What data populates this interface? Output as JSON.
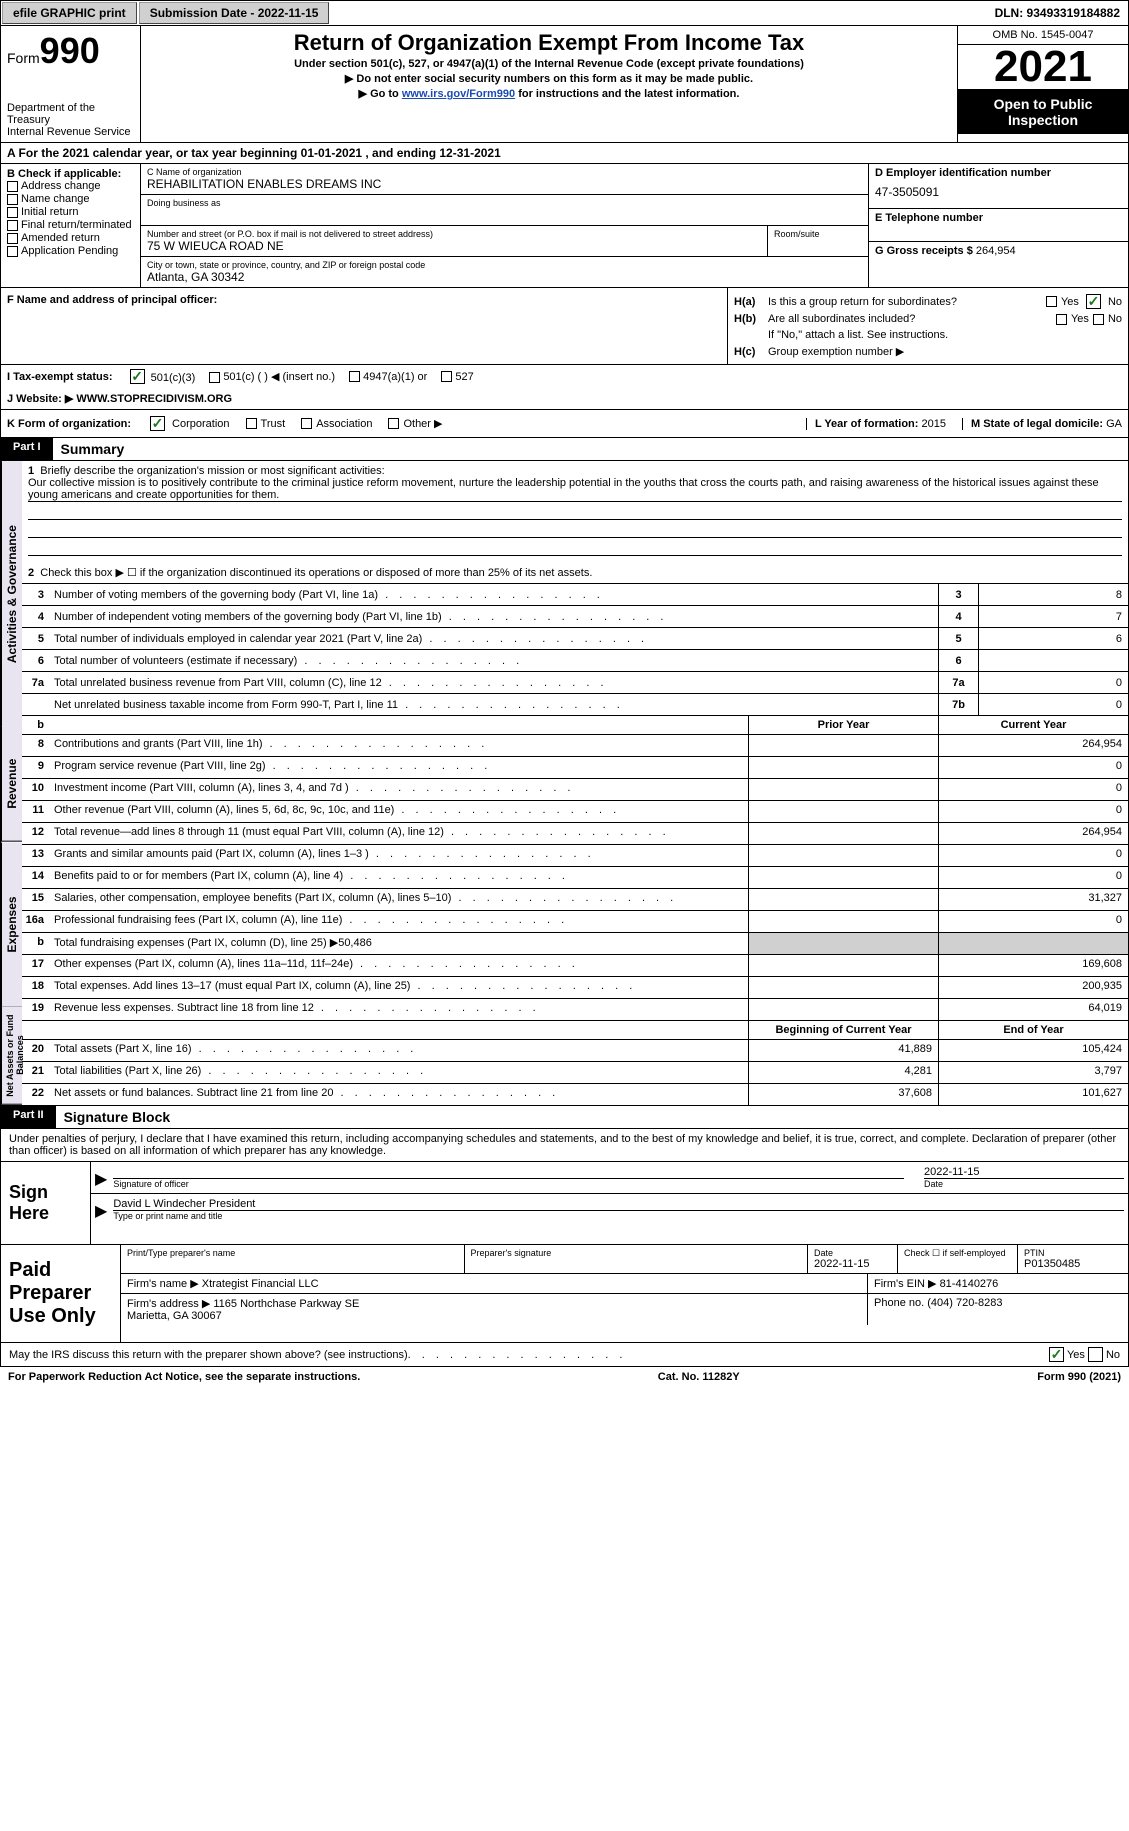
{
  "topbar": {
    "efile": "efile GRAPHIC print",
    "sub_label": "Submission Date - 2022-11-15",
    "dln": "DLN: 93493319184882"
  },
  "header": {
    "form_word": "Form",
    "form_num": "990",
    "title": "Return of Organization Exempt From Income Tax",
    "subtitle": "Under section 501(c), 527, or 4947(a)(1) of the Internal Revenue Code (except private foundations)",
    "note1": "▶ Do not enter social security numbers on this form as it may be made public.",
    "note2_prefix": "▶ Go to ",
    "note2_link": "www.irs.gov/Form990",
    "note2_suffix": " for instructions and the latest information.",
    "dept": "Department of the Treasury\nInternal Revenue Service",
    "omb": "OMB No. 1545-0047",
    "year": "2021",
    "inspection": "Open to Public Inspection"
  },
  "period": "A For the 2021 calendar year, or tax year beginning 01-01-2021    , and ending 12-31-2021",
  "sectionB": {
    "label": "B Check if applicable:",
    "opts": [
      "Address change",
      "Name change",
      "Initial return",
      "Final return/terminated",
      "Amended return",
      "Application Pending"
    ]
  },
  "sectionC": {
    "name_label": "C Name of organization",
    "name": "REHABILITATION ENABLES DREAMS INC",
    "dba_label": "Doing business as",
    "street_label": "Number and street (or P.O. box if mail is not delivered to street address)",
    "room_label": "Room/suite",
    "street": "75 W WIEUCA ROAD NE",
    "city_label": "City or town, state or province, country, and ZIP or foreign postal code",
    "city": "Atlanta, GA  30342"
  },
  "sectionD": {
    "ein_label": "D Employer identification number",
    "ein": "47-3505091",
    "phone_label": "E Telephone number",
    "gross_label": "G Gross receipts $",
    "gross": "264,954"
  },
  "sectionF": {
    "label": "F Name and address of principal officer:"
  },
  "sectionH": {
    "a": "Is this a group return for subordinates?",
    "b": "Are all subordinates included?",
    "b_note": "If \"No,\" attach a list. See instructions.",
    "c": "Group exemption number ▶",
    "yes": "Yes",
    "no": "No"
  },
  "sectionI": {
    "label": "I    Tax-exempt status:",
    "opts": [
      "501(c)(3)",
      "501(c) (   ) ◀ (insert no.)",
      "4947(a)(1) or",
      "527"
    ]
  },
  "sectionJ": {
    "label": "J   Website: ▶",
    "value": "WWW.STOPRECIDIVISM.ORG"
  },
  "sectionK": {
    "label": "K Form of organization:",
    "opts": [
      "Corporation",
      "Trust",
      "Association",
      "Other ▶"
    ],
    "year_label": "L Year of formation:",
    "year": "2015",
    "state_label": "M State of legal domicile:",
    "state": "GA"
  },
  "part1": {
    "header": "Part I",
    "title": "Summary",
    "vtab1": "Activities & Governance",
    "vtab2": "Revenue",
    "vtab3": "Expenses",
    "vtab4": "Net Assets or Fund Balances",
    "line1_label": "Briefly describe the organization's mission or most significant activities:",
    "mission": "Our collective mission is to positively contribute to the criminal justice reform movement, nurture the leadership potential in the youths that cross the courts path, and raising awareness of the historical issues against these young americans and create opportunities for them.",
    "line2": "Check this box ▶ ☐ if the organization discontinued its operations or disposed of more than 25% of its net assets.",
    "lines": [
      {
        "n": "3",
        "t": "Number of voting members of the governing body (Part VI, line 1a)",
        "box": "3",
        "v": "8"
      },
      {
        "n": "4",
        "t": "Number of independent voting members of the governing body (Part VI, line 1b)",
        "box": "4",
        "v": "7"
      },
      {
        "n": "5",
        "t": "Total number of individuals employed in calendar year 2021 (Part V, line 2a)",
        "box": "5",
        "v": "6"
      },
      {
        "n": "6",
        "t": "Total number of volunteers (estimate if necessary)",
        "box": "6",
        "v": ""
      },
      {
        "n": "7a",
        "t": "Total unrelated business revenue from Part VIII, column (C), line 12",
        "box": "7a",
        "v": "0"
      },
      {
        "n": "",
        "t": "Net unrelated business taxable income from Form 990-T, Part I, line 11",
        "box": "7b",
        "v": "0"
      }
    ],
    "col_prior": "Prior Year",
    "col_current": "Current Year",
    "revenue": [
      {
        "n": "8",
        "t": "Contributions and grants (Part VIII, line 1h)",
        "p": "",
        "c": "264,954"
      },
      {
        "n": "9",
        "t": "Program service revenue (Part VIII, line 2g)",
        "p": "",
        "c": "0"
      },
      {
        "n": "10",
        "t": "Investment income (Part VIII, column (A), lines 3, 4, and 7d )",
        "p": "",
        "c": "0"
      },
      {
        "n": "11",
        "t": "Other revenue (Part VIII, column (A), lines 5, 6d, 8c, 9c, 10c, and 11e)",
        "p": "",
        "c": "0"
      },
      {
        "n": "12",
        "t": "Total revenue—add lines 8 through 11 (must equal Part VIII, column (A), line 12)",
        "p": "",
        "c": "264,954"
      }
    ],
    "expenses": [
      {
        "n": "13",
        "t": "Grants and similar amounts paid (Part IX, column (A), lines 1–3 )",
        "p": "",
        "c": "0"
      },
      {
        "n": "14",
        "t": "Benefits paid to or for members (Part IX, column (A), line 4)",
        "p": "",
        "c": "0"
      },
      {
        "n": "15",
        "t": "Salaries, other compensation, employee benefits (Part IX, column (A), lines 5–10)",
        "p": "",
        "c": "31,327"
      },
      {
        "n": "16a",
        "t": "Professional fundraising fees (Part IX, column (A), line 11e)",
        "p": "",
        "c": "0"
      },
      {
        "n": "b",
        "t": "Total fundraising expenses (Part IX, column (D), line 25) ▶50,486",
        "shaded": true
      },
      {
        "n": "17",
        "t": "Other expenses (Part IX, column (A), lines 11a–11d, 11f–24e)",
        "p": "",
        "c": "169,608"
      },
      {
        "n": "18",
        "t": "Total expenses. Add lines 13–17 (must equal Part IX, column (A), line 25)",
        "p": "",
        "c": "200,935"
      },
      {
        "n": "19",
        "t": "Revenue less expenses. Subtract line 18 from line 12",
        "p": "",
        "c": "64,019"
      }
    ],
    "col_begin": "Beginning of Current Year",
    "col_end": "End of Year",
    "netassets": [
      {
        "n": "20",
        "t": "Total assets (Part X, line 16)",
        "p": "41,889",
        "c": "105,424"
      },
      {
        "n": "21",
        "t": "Total liabilities (Part X, line 26)",
        "p": "4,281",
        "c": "3,797"
      },
      {
        "n": "22",
        "t": "Net assets or fund balances. Subtract line 21 from line 20",
        "p": "37,608",
        "c": "101,627"
      }
    ]
  },
  "part2": {
    "header": "Part II",
    "title": "Signature Block",
    "decl": "Under penalties of perjury, I declare that I have examined this return, including accompanying schedules and statements, and to the best of my knowledge and belief, it is true, correct, and complete. Declaration of preparer (other than officer) is based on all information of which preparer has any knowledge.",
    "sign_here": "Sign Here",
    "sig_officer": "Signature of officer",
    "sig_date": "2022-11-15",
    "date_label": "Date",
    "officer_name": "David L Windecher  President",
    "officer_label": "Type or print name and title",
    "paid": "Paid Preparer Use Only",
    "prep_name_label": "Print/Type preparer's name",
    "prep_sig_label": "Preparer's signature",
    "prep_date_label": "Date",
    "prep_date": "2022-11-15",
    "check_self": "Check ☐ if self-employed",
    "ptin_label": "PTIN",
    "ptin": "P01350485",
    "firm_name_label": "Firm's name    ▶",
    "firm_name": "Xtrategist Financial LLC",
    "firm_ein_label": "Firm's EIN ▶",
    "firm_ein": "81-4140276",
    "firm_addr_label": "Firm's address ▶",
    "firm_addr": "1165 Northchase Parkway SE\nMarietta, GA  30067",
    "firm_phone_label": "Phone no.",
    "firm_phone": "(404) 720-8283",
    "discuss": "May the IRS discuss this return with the preparer shown above? (see instructions)",
    "yes": "Yes",
    "no": "No"
  },
  "footer": {
    "left": "For Paperwork Reduction Act Notice, see the separate instructions.",
    "mid": "Cat. No. 11282Y",
    "right": "Form 990 (2021)"
  }
}
